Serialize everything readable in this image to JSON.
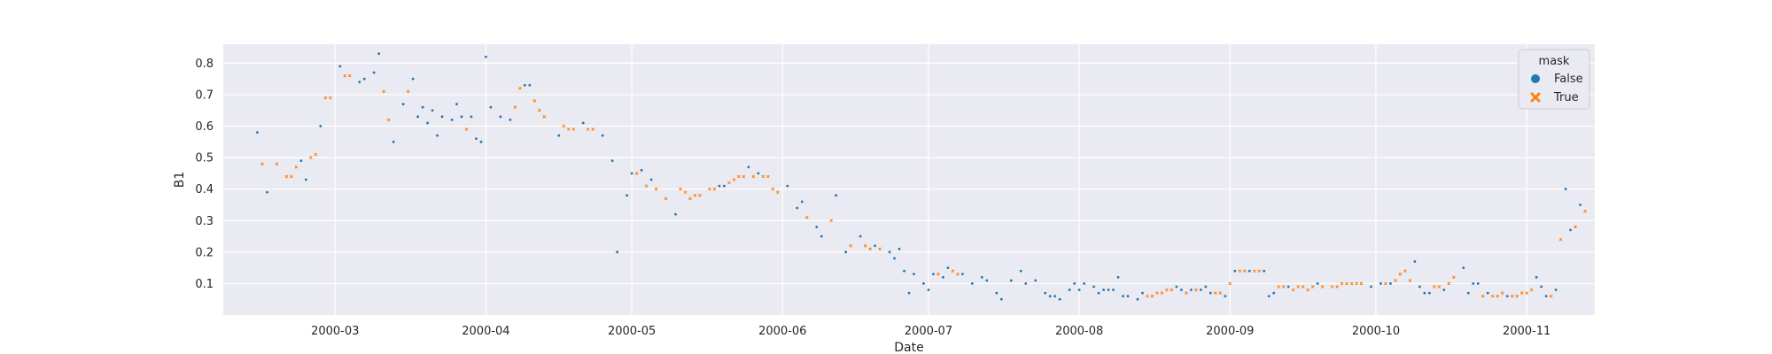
{
  "colors": {
    "background": "#eaeaf2",
    "grid": "#ffffff",
    "series_false": "#1f77b4",
    "series_true": "#ff7f0e",
    "legend_bg": "#eaeaf2",
    "legend_border": "#cccccc"
  },
  "chart_data": {
    "type": "scatter",
    "title": "",
    "xlabel": "Date",
    "ylabel": "B1",
    "x_type": "date",
    "xlim": [
      "2000-02-07",
      "2000-11-15"
    ],
    "ylim": [
      0.0,
      0.86
    ],
    "grid": true,
    "legend_placement": "top-right",
    "x_ticks": [
      "2000-03",
      "2000-04",
      "2000-05",
      "2000-06",
      "2000-07",
      "2000-08",
      "2000-09",
      "2000-10",
      "2000-11"
    ],
    "y_ticks": [
      "0.1",
      "0.2",
      "0.3",
      "0.4",
      "0.5",
      "0.6",
      "0.7",
      "0.8"
    ],
    "legend": {
      "title": "mask",
      "entries": [
        {
          "label": "False",
          "marker": "circle",
          "color": "#1f77b4"
        },
        {
          "label": "True",
          "marker": "x",
          "color": "#ff7f0e"
        }
      ]
    },
    "series": [
      {
        "name": "False",
        "marker": "circle",
        "color": "#1f77b4",
        "points": [
          [
            "2000-02-14",
            0.58
          ],
          [
            "2000-02-16",
            0.39
          ],
          [
            "2000-02-23",
            0.49
          ],
          [
            "2000-02-24",
            0.43
          ],
          [
            "2000-02-27",
            0.6
          ],
          [
            "2000-03-02",
            0.79
          ],
          [
            "2000-03-06",
            0.74
          ],
          [
            "2000-03-07",
            0.75
          ],
          [
            "2000-03-09",
            0.77
          ],
          [
            "2000-03-10",
            0.83
          ],
          [
            "2000-03-13",
            0.55
          ],
          [
            "2000-03-15",
            0.67
          ],
          [
            "2000-03-17",
            0.75
          ],
          [
            "2000-03-18",
            0.63
          ],
          [
            "2000-03-19",
            0.66
          ],
          [
            "2000-03-20",
            0.61
          ],
          [
            "2000-03-21",
            0.65
          ],
          [
            "2000-03-22",
            0.57
          ],
          [
            "2000-03-23",
            0.63
          ],
          [
            "2000-03-25",
            0.62
          ],
          [
            "2000-03-26",
            0.67
          ],
          [
            "2000-03-27",
            0.63
          ],
          [
            "2000-03-29",
            0.63
          ],
          [
            "2000-03-30",
            0.56
          ],
          [
            "2000-03-31",
            0.55
          ],
          [
            "2000-04-01",
            0.82
          ],
          [
            "2000-04-02",
            0.66
          ],
          [
            "2000-04-04",
            0.63
          ],
          [
            "2000-04-06",
            0.62
          ],
          [
            "2000-04-09",
            0.73
          ],
          [
            "2000-04-10",
            0.73
          ],
          [
            "2000-04-16",
            0.57
          ],
          [
            "2000-04-21",
            0.61
          ],
          [
            "2000-04-25",
            0.57
          ],
          [
            "2000-04-27",
            0.49
          ],
          [
            "2000-04-28",
            0.2
          ],
          [
            "2000-04-30",
            0.38
          ],
          [
            "2000-05-01",
            0.45
          ],
          [
            "2000-05-03",
            0.46
          ],
          [
            "2000-05-05",
            0.43
          ],
          [
            "2000-05-10",
            0.32
          ],
          [
            "2000-05-19",
            0.41
          ],
          [
            "2000-05-20",
            0.41
          ],
          [
            "2000-05-25",
            0.47
          ],
          [
            "2000-05-27",
            0.45
          ],
          [
            "2000-06-02",
            0.41
          ],
          [
            "2000-06-04",
            0.34
          ],
          [
            "2000-06-05",
            0.36
          ],
          [
            "2000-06-08",
            0.28
          ],
          [
            "2000-06-09",
            0.25
          ],
          [
            "2000-06-12",
            0.38
          ],
          [
            "2000-06-14",
            0.2
          ],
          [
            "2000-06-17",
            0.25
          ],
          [
            "2000-06-20",
            0.22
          ],
          [
            "2000-06-23",
            0.2
          ],
          [
            "2000-06-24",
            0.18
          ],
          [
            "2000-06-25",
            0.21
          ],
          [
            "2000-06-26",
            0.14
          ],
          [
            "2000-06-27",
            0.07
          ],
          [
            "2000-06-28",
            0.13
          ],
          [
            "2000-06-30",
            0.1
          ],
          [
            "2000-07-01",
            0.08
          ],
          [
            "2000-07-02",
            0.13
          ],
          [
            "2000-07-04",
            0.12
          ],
          [
            "2000-07-05",
            0.15
          ],
          [
            "2000-07-08",
            0.13
          ],
          [
            "2000-07-10",
            0.1
          ],
          [
            "2000-07-12",
            0.12
          ],
          [
            "2000-07-13",
            0.11
          ],
          [
            "2000-07-15",
            0.07
          ],
          [
            "2000-07-16",
            0.05
          ],
          [
            "2000-07-18",
            0.11
          ],
          [
            "2000-07-20",
            0.14
          ],
          [
            "2000-07-21",
            0.1
          ],
          [
            "2000-07-23",
            0.11
          ],
          [
            "2000-07-25",
            0.07
          ],
          [
            "2000-07-26",
            0.06
          ],
          [
            "2000-07-27",
            0.06
          ],
          [
            "2000-07-28",
            0.05
          ],
          [
            "2000-07-30",
            0.08
          ],
          [
            "2000-07-31",
            0.1
          ],
          [
            "2000-08-01",
            0.08
          ],
          [
            "2000-08-02",
            0.1
          ],
          [
            "2000-08-04",
            0.09
          ],
          [
            "2000-08-05",
            0.07
          ],
          [
            "2000-08-06",
            0.08
          ],
          [
            "2000-08-07",
            0.08
          ],
          [
            "2000-08-08",
            0.08
          ],
          [
            "2000-08-09",
            0.12
          ],
          [
            "2000-08-10",
            0.06
          ],
          [
            "2000-08-11",
            0.06
          ],
          [
            "2000-08-13",
            0.05
          ],
          [
            "2000-08-14",
            0.07
          ],
          [
            "2000-08-21",
            0.09
          ],
          [
            "2000-08-22",
            0.08
          ],
          [
            "2000-08-24",
            0.08
          ],
          [
            "2000-08-26",
            0.08
          ],
          [
            "2000-08-27",
            0.09
          ],
          [
            "2000-08-28",
            0.07
          ],
          [
            "2000-08-31",
            0.06
          ],
          [
            "2000-09-02",
            0.14
          ],
          [
            "2000-09-05",
            0.14
          ],
          [
            "2000-09-08",
            0.14
          ],
          [
            "2000-09-09",
            0.06
          ],
          [
            "2000-09-10",
            0.07
          ],
          [
            "2000-09-13",
            0.09
          ],
          [
            "2000-09-19",
            0.1
          ],
          [
            "2000-09-30",
            0.09
          ],
          [
            "2000-10-02",
            0.1
          ],
          [
            "2000-10-04",
            0.1
          ],
          [
            "2000-10-09",
            0.17
          ],
          [
            "2000-10-10",
            0.09
          ],
          [
            "2000-10-11",
            0.07
          ],
          [
            "2000-10-12",
            0.07
          ],
          [
            "2000-10-15",
            0.08
          ],
          [
            "2000-10-19",
            0.15
          ],
          [
            "2000-10-20",
            0.07
          ],
          [
            "2000-10-21",
            0.1
          ],
          [
            "2000-10-22",
            0.1
          ],
          [
            "2000-10-24",
            0.07
          ],
          [
            "2000-10-28",
            0.06
          ],
          [
            "2000-11-03",
            0.12
          ],
          [
            "2000-11-04",
            0.09
          ],
          [
            "2000-11-05",
            0.06
          ],
          [
            "2000-11-07",
            0.08
          ],
          [
            "2000-11-09",
            0.4
          ],
          [
            "2000-11-10",
            0.27
          ],
          [
            "2000-11-12",
            0.35
          ]
        ]
      },
      {
        "name": "True",
        "marker": "x",
        "color": "#ff7f0e",
        "points": [
          [
            "2000-02-15",
            0.48
          ],
          [
            "2000-02-18",
            0.48
          ],
          [
            "2000-02-20",
            0.44
          ],
          [
            "2000-02-21",
            0.44
          ],
          [
            "2000-02-22",
            0.47
          ],
          [
            "2000-02-25",
            0.5
          ],
          [
            "2000-02-26",
            0.51
          ],
          [
            "2000-02-28",
            0.69
          ],
          [
            "2000-02-29",
            0.69
          ],
          [
            "2000-03-03",
            0.76
          ],
          [
            "2000-03-04",
            0.76
          ],
          [
            "2000-03-11",
            0.71
          ],
          [
            "2000-03-12",
            0.62
          ],
          [
            "2000-03-16",
            0.71
          ],
          [
            "2000-03-28",
            0.59
          ],
          [
            "2000-04-07",
            0.66
          ],
          [
            "2000-04-08",
            0.72
          ],
          [
            "2000-04-11",
            0.68
          ],
          [
            "2000-04-12",
            0.65
          ],
          [
            "2000-04-13",
            0.63
          ],
          [
            "2000-04-17",
            0.6
          ],
          [
            "2000-04-18",
            0.59
          ],
          [
            "2000-04-19",
            0.59
          ],
          [
            "2000-04-22",
            0.59
          ],
          [
            "2000-04-23",
            0.59
          ],
          [
            "2000-05-02",
            0.45
          ],
          [
            "2000-05-04",
            0.41
          ],
          [
            "2000-05-06",
            0.4
          ],
          [
            "2000-05-08",
            0.37
          ],
          [
            "2000-05-11",
            0.4
          ],
          [
            "2000-05-12",
            0.39
          ],
          [
            "2000-05-13",
            0.37
          ],
          [
            "2000-05-14",
            0.38
          ],
          [
            "2000-05-15",
            0.38
          ],
          [
            "2000-05-17",
            0.4
          ],
          [
            "2000-05-18",
            0.4
          ],
          [
            "2000-05-21",
            0.42
          ],
          [
            "2000-05-22",
            0.43
          ],
          [
            "2000-05-23",
            0.44
          ],
          [
            "2000-05-24",
            0.44
          ],
          [
            "2000-05-26",
            0.44
          ],
          [
            "2000-05-28",
            0.44
          ],
          [
            "2000-05-29",
            0.44
          ],
          [
            "2000-05-30",
            0.4
          ],
          [
            "2000-05-31",
            0.39
          ],
          [
            "2000-06-06",
            0.31
          ],
          [
            "2000-06-11",
            0.3
          ],
          [
            "2000-06-15",
            0.22
          ],
          [
            "2000-06-18",
            0.22
          ],
          [
            "2000-06-19",
            0.21
          ],
          [
            "2000-06-21",
            0.21
          ],
          [
            "2000-07-03",
            0.13
          ],
          [
            "2000-07-06",
            0.14
          ],
          [
            "2000-07-07",
            0.13
          ],
          [
            "2000-08-15",
            0.06
          ],
          [
            "2000-08-16",
            0.06
          ],
          [
            "2000-08-17",
            0.07
          ],
          [
            "2000-08-18",
            0.07
          ],
          [
            "2000-08-19",
            0.08
          ],
          [
            "2000-08-20",
            0.08
          ],
          [
            "2000-08-23",
            0.07
          ],
          [
            "2000-08-25",
            0.08
          ],
          [
            "2000-08-29",
            0.07
          ],
          [
            "2000-08-30",
            0.07
          ],
          [
            "2000-09-01",
            0.1
          ],
          [
            "2000-09-03",
            0.14
          ],
          [
            "2000-09-04",
            0.14
          ],
          [
            "2000-09-06",
            0.14
          ],
          [
            "2000-09-07",
            0.14
          ],
          [
            "2000-09-11",
            0.09
          ],
          [
            "2000-09-12",
            0.09
          ],
          [
            "2000-09-14",
            0.08
          ],
          [
            "2000-09-15",
            0.09
          ],
          [
            "2000-09-16",
            0.09
          ],
          [
            "2000-09-17",
            0.08
          ],
          [
            "2000-09-18",
            0.09
          ],
          [
            "2000-09-20",
            0.09
          ],
          [
            "2000-09-22",
            0.09
          ],
          [
            "2000-09-23",
            0.09
          ],
          [
            "2000-09-24",
            0.1
          ],
          [
            "2000-09-25",
            0.1
          ],
          [
            "2000-09-26",
            0.1
          ],
          [
            "2000-09-27",
            0.1
          ],
          [
            "2000-09-28",
            0.1
          ],
          [
            "2000-10-03",
            0.1
          ],
          [
            "2000-10-05",
            0.11
          ],
          [
            "2000-10-06",
            0.13
          ],
          [
            "2000-10-07",
            0.14
          ],
          [
            "2000-10-08",
            0.11
          ],
          [
            "2000-10-13",
            0.09
          ],
          [
            "2000-10-14",
            0.09
          ],
          [
            "2000-10-16",
            0.1
          ],
          [
            "2000-10-17",
            0.12
          ],
          [
            "2000-10-23",
            0.06
          ],
          [
            "2000-10-25",
            0.06
          ],
          [
            "2000-10-26",
            0.06
          ],
          [
            "2000-10-27",
            0.07
          ],
          [
            "2000-10-29",
            0.06
          ],
          [
            "2000-10-30",
            0.06
          ],
          [
            "2000-10-31",
            0.07
          ],
          [
            "2000-11-01",
            0.07
          ],
          [
            "2000-11-02",
            0.08
          ],
          [
            "2000-11-06",
            0.06
          ],
          [
            "2000-11-08",
            0.24
          ],
          [
            "2000-11-11",
            0.28
          ],
          [
            "2000-11-13",
            0.33
          ]
        ]
      }
    ]
  }
}
